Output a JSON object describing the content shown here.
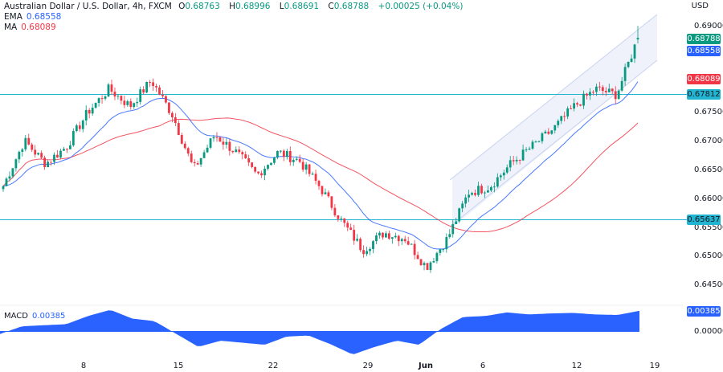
{
  "header": {
    "symbol": "Australian Dollar / U.S. Dollar, 4h, FXCM",
    "open_label": "O",
    "open": "0.68763",
    "high_label": "H",
    "high": "0.68996",
    "low_label": "L",
    "low": "0.68691",
    "close_label": "C",
    "close": "0.68788",
    "change": "+0.00025 (+0.04%)"
  },
  "indicators": {
    "ema": {
      "label": "EMA",
      "value": "0.68558",
      "color": "#2962ff"
    },
    "ma": {
      "label": "MA",
      "value": "0.68089",
      "color": "#f23645"
    },
    "macd": {
      "label": "MACD",
      "value": "0.00385",
      "color": "#2962ff"
    }
  },
  "price_axis": {
    "currency": "USD",
    "ticks": [
      "0.69000",
      "0.67500",
      "0.67000",
      "0.66500",
      "0.66000",
      "0.65500",
      "0.65000",
      "0.64500"
    ],
    "badges": [
      {
        "name": "last-price-badge",
        "value": "0.68788",
        "color": "#089981"
      },
      {
        "name": "ema-badge",
        "value": "0.68558",
        "color": "#2962ff"
      },
      {
        "name": "ma-badge",
        "value": "0.68089",
        "color": "#f23645"
      },
      {
        "name": "resistance-badge",
        "value": "0.67812",
        "color": "#22b5d1"
      },
      {
        "name": "support-badge",
        "value": "0.65637",
        "color": "#22b5d1"
      }
    ]
  },
  "macd_axis": {
    "ticks": [
      "0.00385",
      "0.00000"
    ]
  },
  "time_axis": {
    "labels": [
      "8",
      "15",
      "22",
      "29",
      "Jun",
      "6",
      "12",
      "19"
    ]
  },
  "colors": {
    "up": "#089981",
    "down": "#f23645",
    "ema": "#2962ff",
    "ma": "#f23645",
    "hline": "#22b5d1",
    "channel_fill": "#eef1fb",
    "channel_line": "#c9d3ef",
    "macd_fill": "#2962ff"
  },
  "chart_data": [
    {
      "type": "candlestick",
      "title": "Australian Dollar / U.S. Dollar, 4h, FXCM",
      "xlabel": "",
      "ylabel": "USD",
      "ylim": [
        0.644,
        0.6935
      ],
      "x_tick_labels": [
        "8",
        "15",
        "22",
        "29",
        "Jun",
        "6",
        "12",
        "19"
      ],
      "y_tick_labels": [
        "0.69000",
        "0.67500",
        "0.67000",
        "0.66500",
        "0.66000",
        "0.65500",
        "0.65000",
        "0.64500"
      ],
      "last_ohlc": {
        "open": 0.68763,
        "high": 0.68996,
        "low": 0.68691,
        "close": 0.68788,
        "change": 0.00025,
        "change_pct": 0.04
      },
      "horizontal_lines": [
        0.67812,
        0.65637
      ],
      "series": [
        {
          "name": "EMA",
          "last": 0.68558
        },
        {
          "name": "MA",
          "last": 0.68089
        }
      ],
      "regression_channel": {
        "start_approx": [
          0.6555,
          0.6635
        ],
        "end_approx": [
          0.684,
          0.6925
        ]
      },
      "approx_close_path": [
        0.6621,
        0.67,
        0.666,
        0.669,
        0.675,
        0.679,
        0.676,
        0.6805,
        0.6745,
        0.665,
        0.671,
        0.668,
        0.664,
        0.668,
        0.6665,
        0.6618,
        0.656,
        0.651,
        0.654,
        0.653,
        0.648,
        0.653,
        0.661,
        0.662,
        0.666,
        0.669,
        0.672,
        0.676,
        0.679,
        0.678,
        0.6879
      ]
    },
    {
      "type": "area",
      "title": "MACD",
      "last": 0.00385,
      "zero_line": 0.0,
      "approx_values": [
        -0.0005,
        0.001,
        0.0012,
        0.0014,
        0.003,
        0.0042,
        0.0025,
        0.002,
        -0.0005,
        -0.003,
        -0.0018,
        -0.0022,
        -0.0026,
        -0.001,
        -0.0008,
        -0.0025,
        -0.0045,
        -0.003,
        -0.0018,
        -0.0026,
        0.0005,
        0.0028,
        0.003,
        0.0037,
        0.0033,
        0.0035,
        0.0036,
        0.0033,
        0.0032,
        0.004
      ]
    }
  ]
}
